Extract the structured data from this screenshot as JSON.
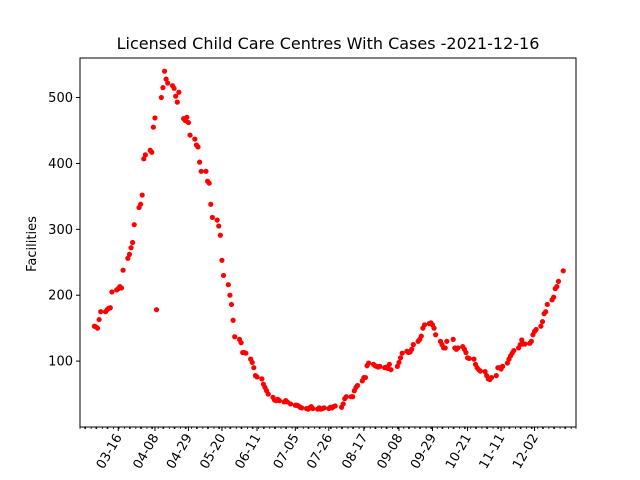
{
  "chart_data": {
    "type": "scatter",
    "title": "Licensed Child Care Centres With Cases -2021-12-16",
    "xlabel": "",
    "ylabel": "Facilities",
    "x_tick_labels": [
      "03-16",
      "04-08",
      "04-29",
      "05-20",
      "06-11",
      "07-05",
      "07-26",
      "08-17",
      "09-08",
      "09-29",
      "10-21",
      "11-11",
      "12-02"
    ],
    "ylim": [
      0,
      560
    ],
    "y_ticks": [
      100,
      200,
      300,
      400,
      500
    ],
    "grid": false,
    "marker_color": "#ff0000",
    "series": [
      {
        "points": [
          [
            "03-01",
            153
          ],
          [
            "03-02",
            152
          ],
          [
            "03-03",
            150
          ],
          [
            "03-04",
            163
          ],
          [
            "03-05",
            175
          ],
          [
            "03-08",
            175
          ],
          [
            "03-09",
            178
          ],
          [
            "03-10",
            180
          ],
          [
            "03-11",
            181
          ],
          [
            "03-12",
            205
          ],
          [
            "03-15",
            208
          ],
          [
            "03-16",
            210
          ],
          [
            "03-17",
            213
          ],
          [
            "03-18",
            211
          ],
          [
            "03-19",
            238
          ],
          [
            "03-22",
            256
          ],
          [
            "03-23",
            262
          ],
          [
            "03-24",
            272
          ],
          [
            "03-25",
            280
          ],
          [
            "03-26",
            307
          ],
          [
            "03-29",
            333
          ],
          [
            "03-30",
            338
          ],
          [
            "03-31",
            352
          ],
          [
            "04-01",
            407
          ],
          [
            "04-02",
            413
          ],
          [
            "04-05",
            420
          ],
          [
            "04-06",
            417
          ],
          [
            "04-07",
            455
          ],
          [
            "04-08",
            469
          ],
          [
            "04-09",
            178
          ],
          [
            "04-12",
            500
          ],
          [
            "04-13",
            515
          ],
          [
            "04-14",
            540
          ],
          [
            "04-15",
            528
          ],
          [
            "04-16",
            522
          ],
          [
            "04-19",
            518
          ],
          [
            "04-20",
            514
          ],
          [
            "04-21",
            502
          ],
          [
            "04-22",
            493
          ],
          [
            "04-23",
            508
          ],
          [
            "04-26",
            468
          ],
          [
            "04-27",
            465
          ],
          [
            "04-28",
            470
          ],
          [
            "04-29",
            462
          ],
          [
            "04-30",
            443
          ],
          [
            "05-03",
            437
          ],
          [
            "05-04",
            428
          ],
          [
            "05-05",
            425
          ],
          [
            "05-06",
            402
          ],
          [
            "05-07",
            388
          ],
          [
            "05-10",
            388
          ],
          [
            "05-11",
            373
          ],
          [
            "05-12",
            370
          ],
          [
            "05-13",
            338
          ],
          [
            "05-14",
            318
          ],
          [
            "05-17",
            314
          ],
          [
            "05-18",
            305
          ],
          [
            "05-19",
            291
          ],
          [
            "05-20",
            253
          ],
          [
            "05-21",
            230
          ],
          [
            "05-24",
            216
          ],
          [
            "05-25",
            200
          ],
          [
            "05-26",
            186
          ],
          [
            "05-27",
            162
          ],
          [
            "05-28",
            137
          ],
          [
            "05-31",
            133
          ],
          [
            "06-01",
            128
          ],
          [
            "06-02",
            113
          ],
          [
            "06-03",
            113
          ],
          [
            "06-04",
            112
          ],
          [
            "06-07",
            103
          ],
          [
            "06-08",
            98
          ],
          [
            "06-09",
            90
          ],
          [
            "06-10",
            78
          ],
          [
            "06-11",
            76
          ],
          [
            "06-14",
            73
          ],
          [
            "06-15",
            65
          ],
          [
            "06-16",
            60
          ],
          [
            "06-17",
            55
          ],
          [
            "06-18",
            50
          ],
          [
            "06-21",
            45
          ],
          [
            "06-22",
            41
          ],
          [
            "06-23",
            40
          ],
          [
            "06-24",
            42
          ],
          [
            "06-25",
            40
          ],
          [
            "06-28",
            38
          ],
          [
            "06-29",
            40
          ],
          [
            "06-30",
            38
          ],
          [
            "07-02",
            35
          ],
          [
            "07-05",
            33
          ],
          [
            "07-06",
            33
          ],
          [
            "07-07",
            32
          ],
          [
            "07-08",
            30
          ],
          [
            "07-09",
            29
          ],
          [
            "07-12",
            28
          ],
          [
            "07-13",
            27
          ],
          [
            "07-14",
            29
          ],
          [
            "07-15",
            31
          ],
          [
            "07-16",
            28
          ],
          [
            "07-19",
            27
          ],
          [
            "07-20",
            29
          ],
          [
            "07-21",
            27
          ],
          [
            "07-22",
            28
          ],
          [
            "07-23",
            29
          ],
          [
            "07-26",
            28
          ],
          [
            "07-27",
            30
          ],
          [
            "07-28",
            29
          ],
          [
            "07-29",
            31
          ],
          [
            "07-30",
            32
          ],
          [
            "08-03",
            30
          ],
          [
            "08-04",
            35
          ],
          [
            "08-05",
            43
          ],
          [
            "08-06",
            46
          ],
          [
            "08-09",
            46
          ],
          [
            "08-10",
            46
          ],
          [
            "08-11",
            55
          ],
          [
            "08-12",
            60
          ],
          [
            "08-13",
            63
          ],
          [
            "08-16",
            70
          ],
          [
            "08-17",
            75
          ],
          [
            "08-18",
            75
          ],
          [
            "08-19",
            93
          ],
          [
            "08-20",
            97
          ],
          [
            "08-23",
            95
          ],
          [
            "08-24",
            93
          ],
          [
            "08-25",
            92
          ],
          [
            "08-26",
            91
          ],
          [
            "08-27",
            92
          ],
          [
            "08-30",
            90
          ],
          [
            "08-31",
            91
          ],
          [
            "09-01",
            89
          ],
          [
            "09-02",
            95
          ],
          [
            "09-03",
            87
          ],
          [
            "09-07",
            92
          ],
          [
            "09-08",
            98
          ],
          [
            "09-09",
            105
          ],
          [
            "09-10",
            112
          ],
          [
            "09-13",
            115
          ],
          [
            "09-14",
            113
          ],
          [
            "09-15",
            114
          ],
          [
            "09-16",
            118
          ],
          [
            "09-17",
            125
          ],
          [
            "09-20",
            130
          ],
          [
            "09-21",
            133
          ],
          [
            "09-22",
            138
          ],
          [
            "09-23",
            150
          ],
          [
            "09-24",
            155
          ],
          [
            "09-27",
            157
          ],
          [
            "09-28",
            158
          ],
          [
            "09-29",
            155
          ],
          [
            "09-30",
            150
          ],
          [
            "10-01",
            140
          ],
          [
            "10-04",
            130
          ],
          [
            "10-05",
            125
          ],
          [
            "10-06",
            120
          ],
          [
            "10-07",
            120
          ],
          [
            "10-08",
            130
          ],
          [
            "10-12",
            133
          ],
          [
            "10-13",
            120
          ],
          [
            "10-14",
            118
          ],
          [
            "10-15",
            120
          ],
          [
            "10-18",
            122
          ],
          [
            "10-19",
            118
          ],
          [
            "10-20",
            113
          ],
          [
            "10-21",
            105
          ],
          [
            "10-22",
            104
          ],
          [
            "10-25",
            103
          ],
          [
            "10-26",
            95
          ],
          [
            "10-27",
            90
          ],
          [
            "10-28",
            87
          ],
          [
            "10-29",
            85
          ],
          [
            "11-01",
            84
          ],
          [
            "11-02",
            78
          ],
          [
            "11-03",
            73
          ],
          [
            "11-04",
            72
          ],
          [
            "11-05",
            75
          ],
          [
            "11-08",
            78
          ],
          [
            "11-09",
            90
          ],
          [
            "11-10",
            90
          ],
          [
            "11-11",
            88
          ],
          [
            "11-12",
            92
          ],
          [
            "11-15",
            97
          ],
          [
            "11-16",
            103
          ],
          [
            "11-17",
            108
          ],
          [
            "11-18",
            112
          ],
          [
            "11-19",
            116
          ],
          [
            "11-22",
            120
          ],
          [
            "11-23",
            125
          ],
          [
            "11-24",
            132
          ],
          [
            "11-25",
            126
          ],
          [
            "11-26",
            126
          ],
          [
            "11-29",
            127
          ],
          [
            "11-30",
            130
          ],
          [
            "12-01",
            140
          ],
          [
            "12-02",
            145
          ],
          [
            "12-03",
            148
          ],
          [
            "12-06",
            153
          ],
          [
            "12-07",
            160
          ],
          [
            "12-08",
            172
          ],
          [
            "12-09",
            175
          ],
          [
            "12-10",
            186
          ],
          [
            "12-13",
            193
          ],
          [
            "12-14",
            197
          ],
          [
            "12-15",
            210
          ],
          [
            "12-16",
            213
          ],
          [
            "12-17",
            221
          ],
          [
            "12-20",
            237
          ]
        ]
      }
    ]
  }
}
